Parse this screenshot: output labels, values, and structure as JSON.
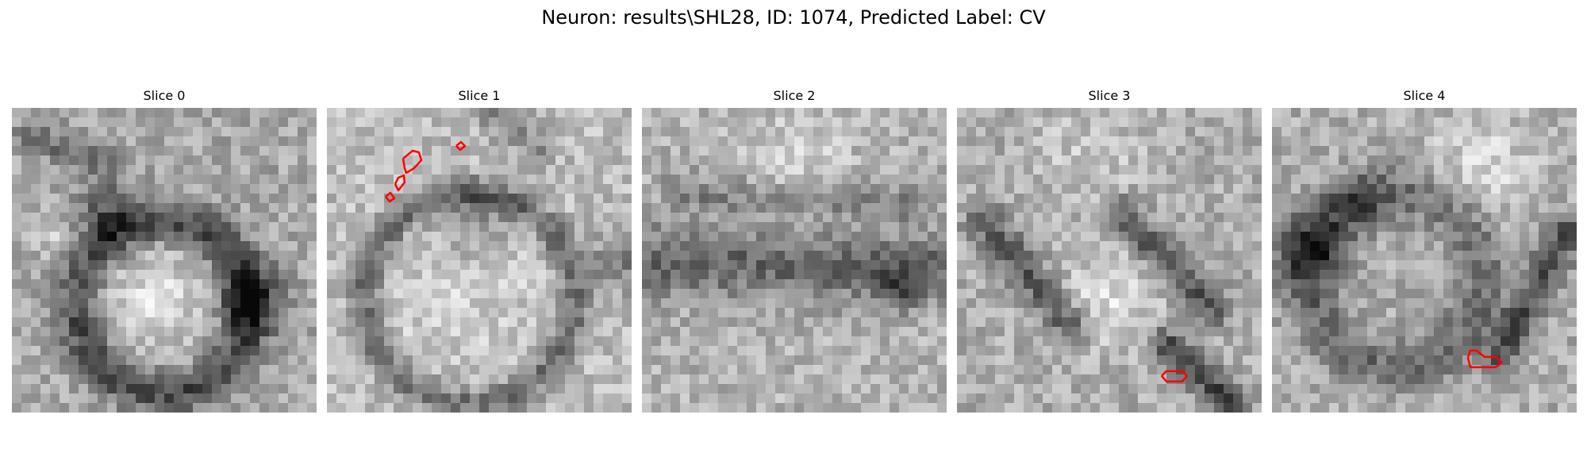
{
  "figure": {
    "title": "Neuron: results\\SHL28, ID: 1074, Predicted Label: CV",
    "contour_color": "#ff0000",
    "colormap": "gray",
    "panels": [
      {
        "title": "Slice 0"
      },
      {
        "title": "Slice 1"
      },
      {
        "title": "Slice 2"
      },
      {
        "title": "Slice 3"
      },
      {
        "title": "Slice 4"
      }
    ]
  }
}
